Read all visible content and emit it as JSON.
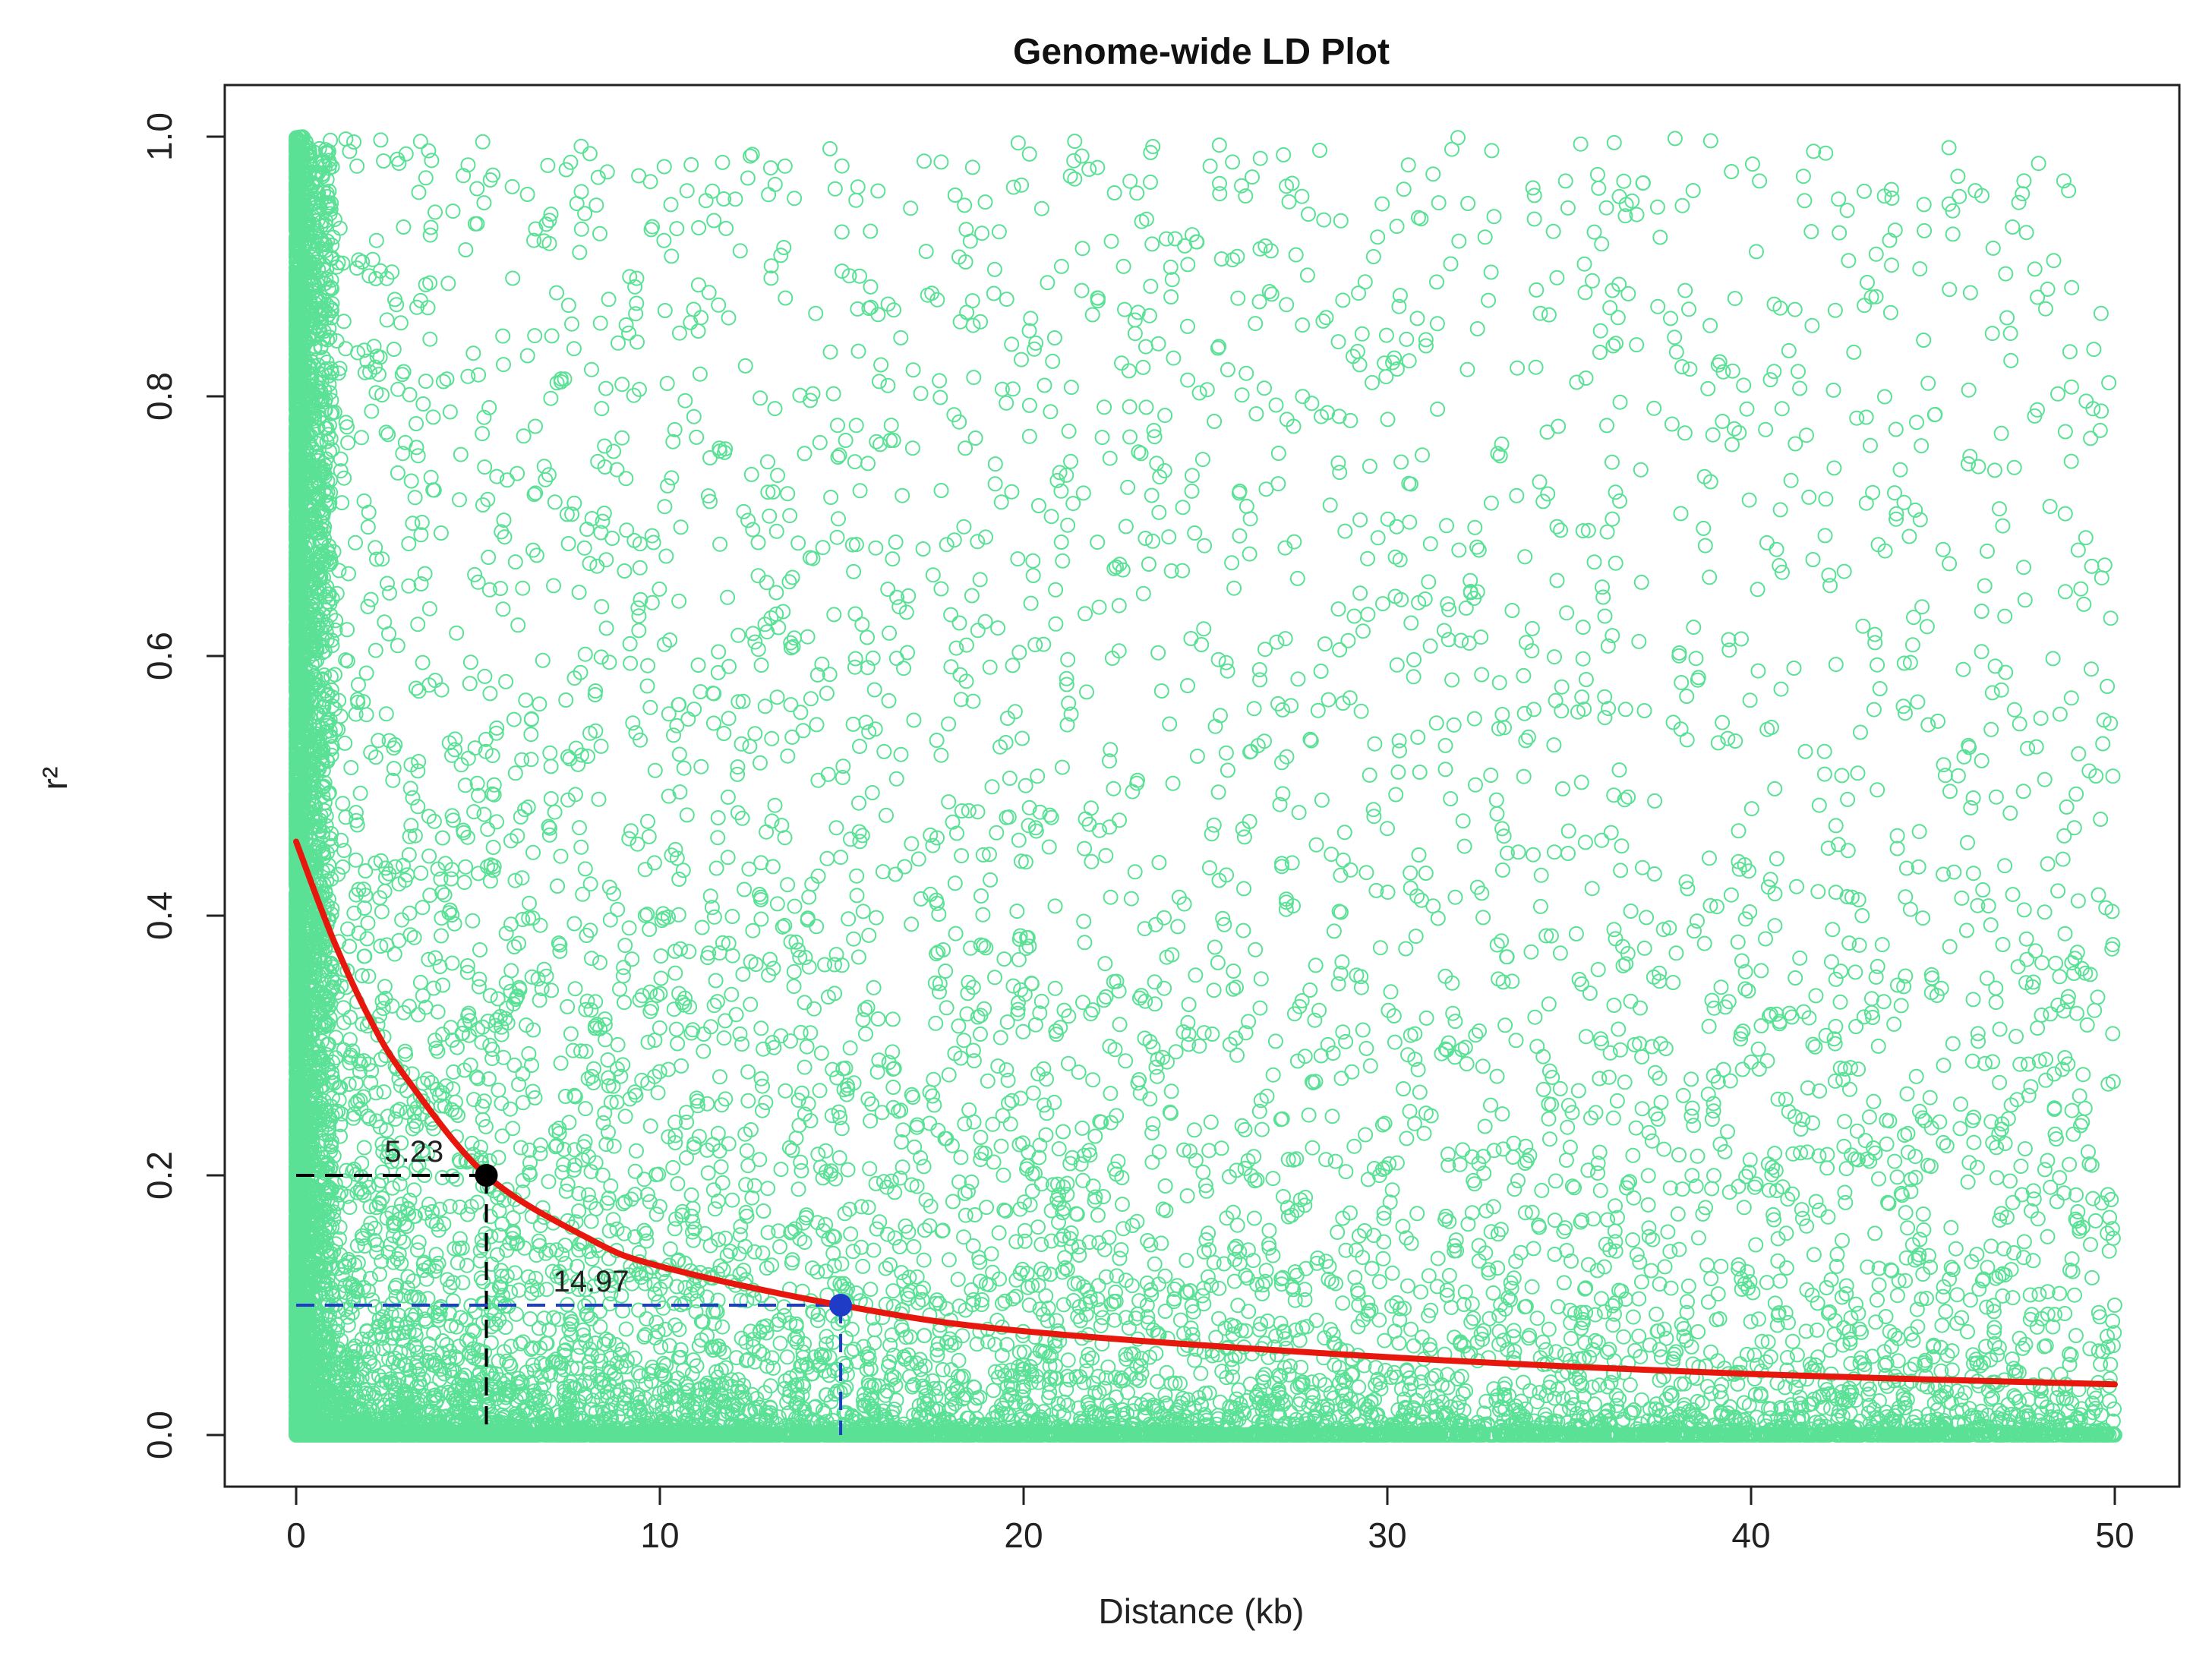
{
  "chart_data": {
    "type": "scatter",
    "title": "Genome-wide LD Plot",
    "xlabel": "Distance (kb)",
    "ylabel": "r²",
    "xlim": [
      0,
      50
    ],
    "ylim": [
      0,
      1
    ],
    "x_ticks": [
      "0",
      "10",
      "20",
      "30",
      "40",
      "50"
    ],
    "y_ticks": [
      "0.0",
      "0.2",
      "0.4",
      "0.6",
      "0.8",
      "1.0"
    ],
    "grid": false,
    "series": [
      {
        "values": "approximately 15,000 r² values between pairs of markers (0–50 kb), densest at short distances and at low r²",
        "color": "#3ddc84",
        "marker": "open-circle"
      }
    ],
    "fit_curve": {
      "description": "decay curve of r² vs distance",
      "color": "#e8170e",
      "x": [
        0,
        1,
        2,
        3,
        5.23,
        8,
        10,
        14.97,
        20,
        30,
        40,
        50
      ],
      "y": [
        0.457,
        0.383,
        0.322,
        0.276,
        0.2,
        0.152,
        0.13,
        0.1,
        0.08,
        0.06,
        0.047,
        0.039
      ]
    },
    "annotations": [
      {
        "text": "5.23",
        "x": 5.23,
        "y": 0.2,
        "color": "#000000"
      },
      {
        "text": "14.97",
        "x": 14.97,
        "y": 0.1,
        "color": "#1f3cc8"
      }
    ],
    "colors": {
      "points": "#3ddc84",
      "curve": "#e8170e",
      "marker_1": "#000000",
      "marker_2": "#1f3cc8"
    }
  }
}
